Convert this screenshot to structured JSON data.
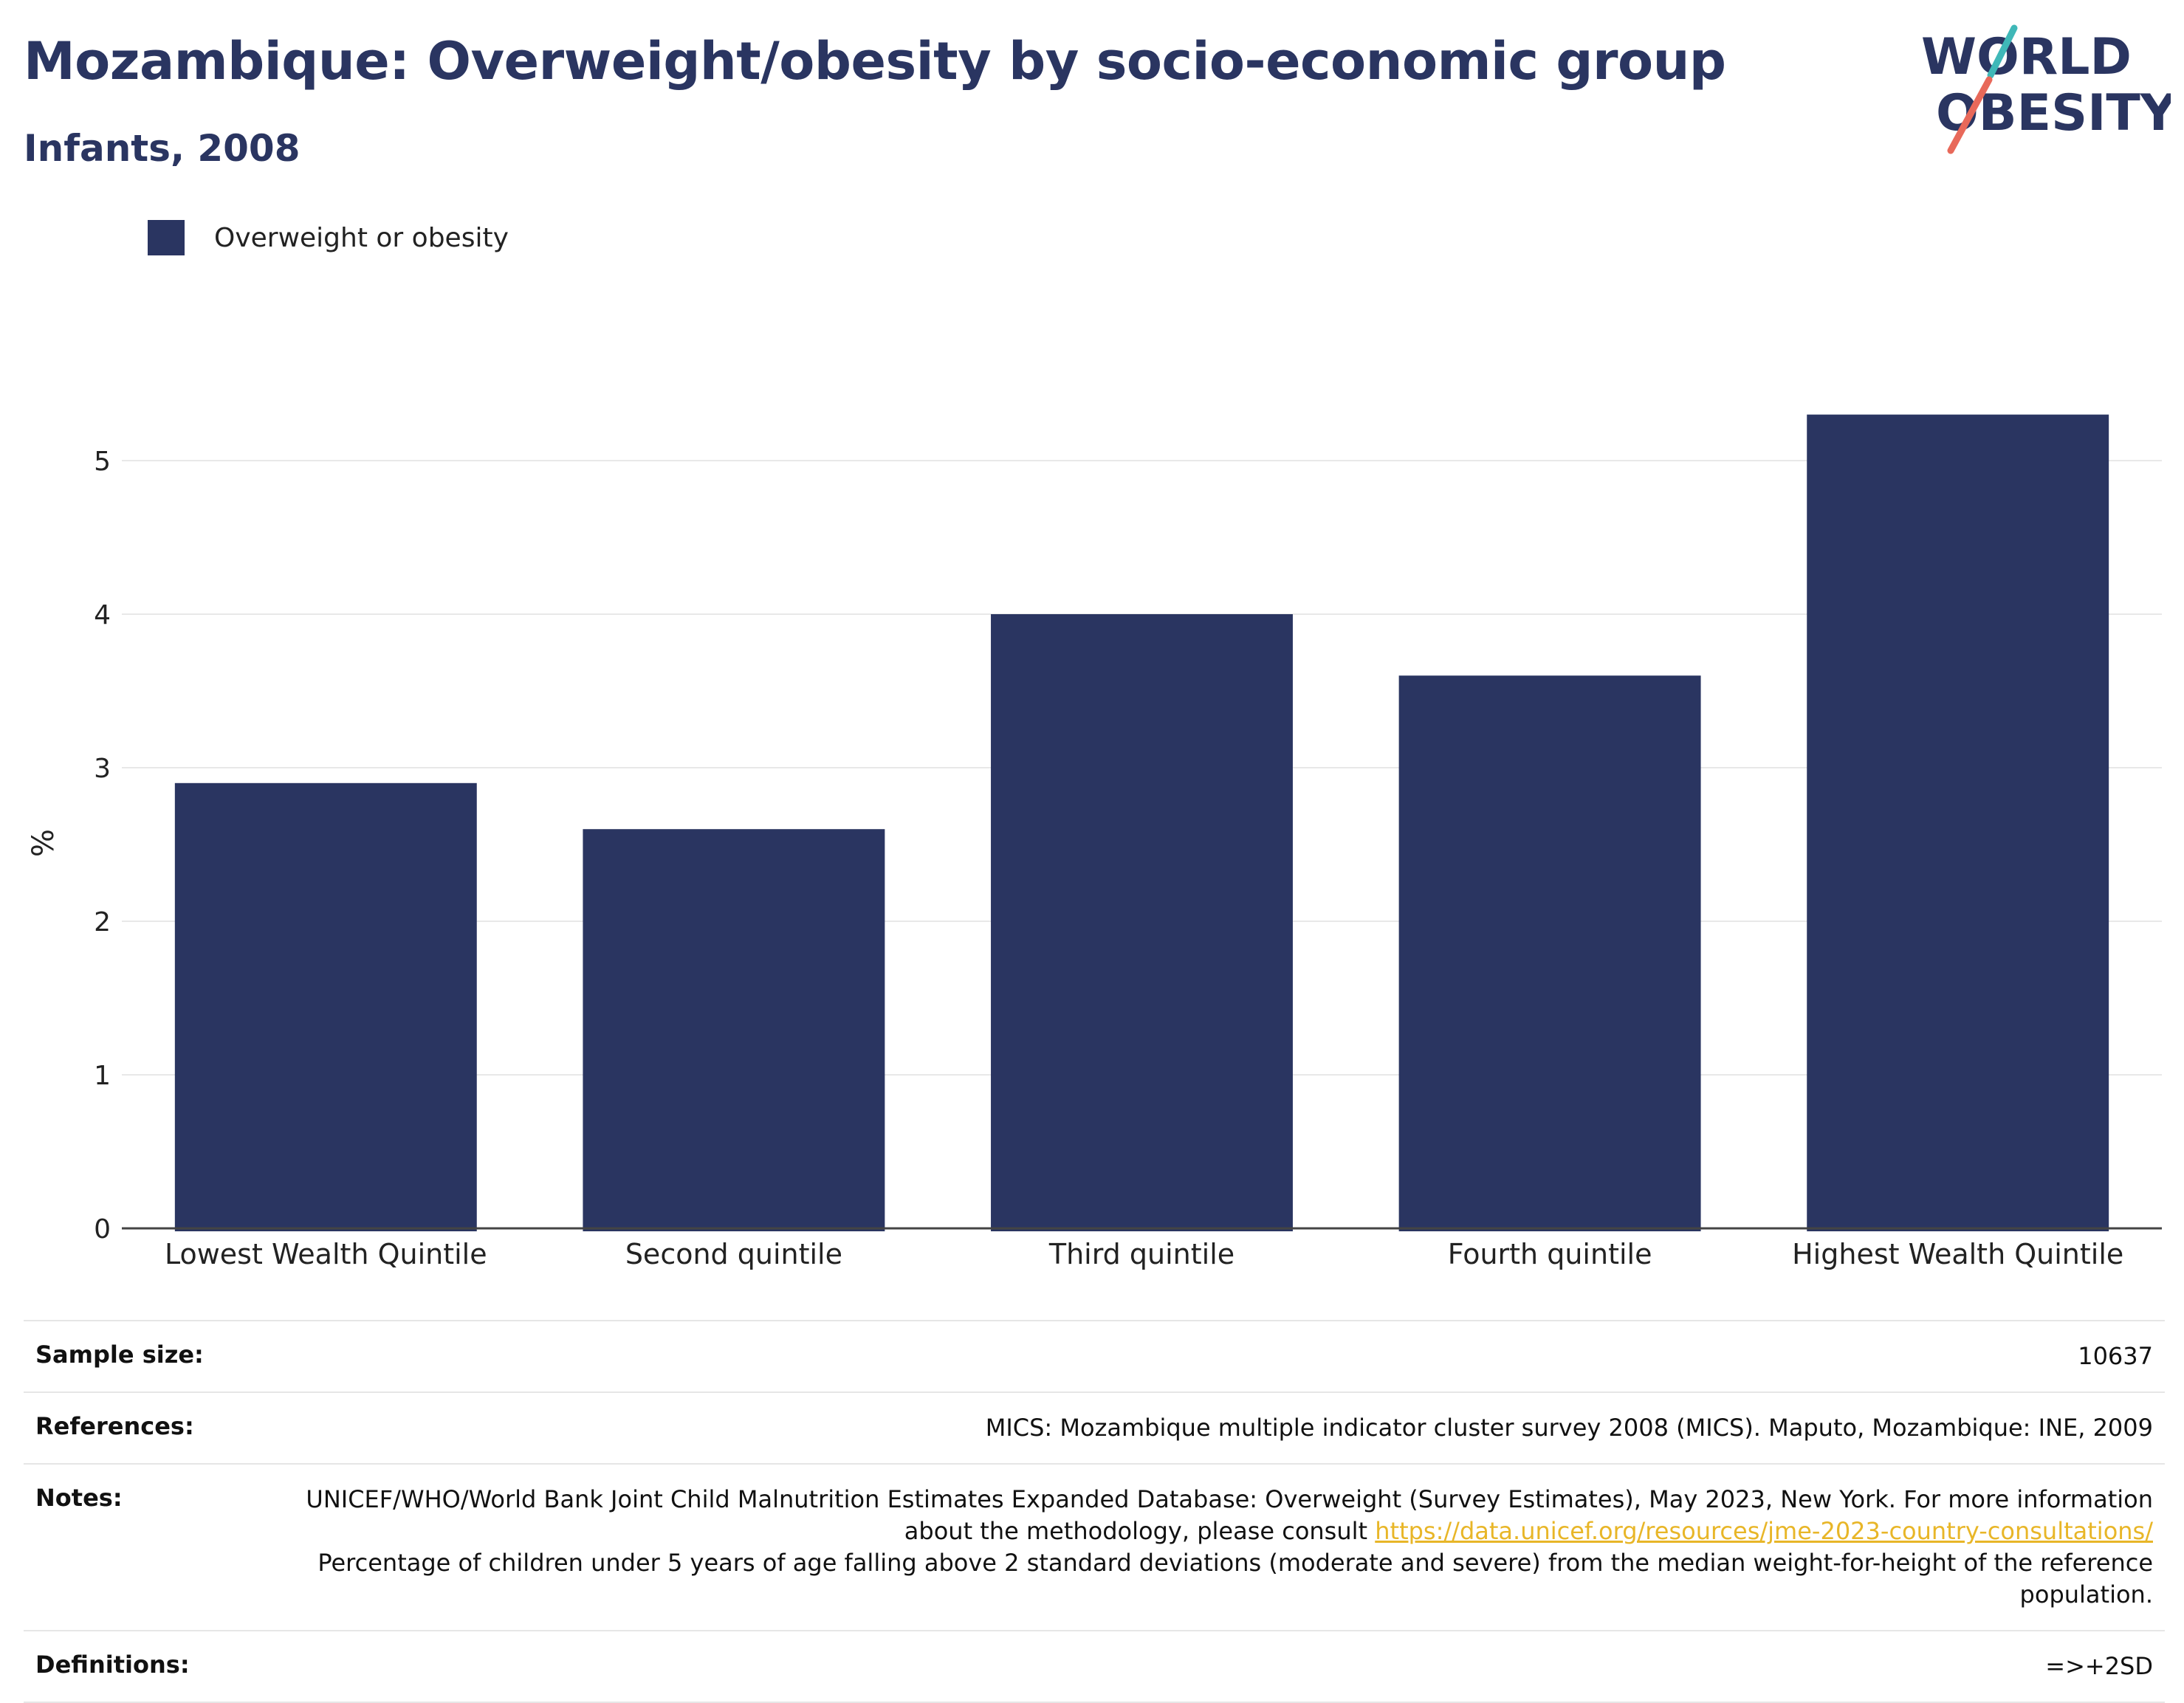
{
  "title": "Mozambique: Overweight/obesity by socio-economic group",
  "subtitle": "Infants, 2008",
  "logo": {
    "line1": "WORLD",
    "line2": "OBESITY"
  },
  "legend": {
    "label": "Overweight or obesity",
    "color": "#2a3561"
  },
  "chart_data": {
    "type": "bar",
    "categories": [
      "Lowest Wealth Quintile",
      "Second quintile",
      "Third quintile",
      "Fourth quintile",
      "Highest Wealth Quintile"
    ],
    "series": [
      {
        "name": "Overweight or obesity",
        "values": [
          2.9,
          2.6,
          4.0,
          3.6,
          5.3
        ],
        "color": "#2a3561"
      }
    ],
    "ylabel": "%",
    "ylim": [
      0,
      5.5
    ],
    "yticks": [
      0,
      1,
      2,
      3,
      4,
      5
    ],
    "grid": true,
    "legend_position": "top-left"
  },
  "meta": {
    "sample_size_label": "Sample size:",
    "sample_size_value": "10637",
    "references_label": "References:",
    "references_value": "MICS: Mozambique multiple indicator cluster survey 2008 (MICS). Maputo, Mozambique: INE, 2009",
    "notes_label": "Notes:",
    "notes_text1": "UNICEF/WHO/World Bank Joint Child Malnutrition Estimates Expanded Database: Overweight (Survey Estimates), May 2023, New York. For more information about the methodology, please consult",
    "notes_link": "https://data.unicef.org/resources/jme-2023-country-consultations/",
    "notes_text2": "Percentage of children under 5 years of age falling above 2 standard deviations (moderate and severe) from the median weight-for-height of the reference population.",
    "definitions_label": "Definitions:",
    "definitions_value": "=>+2SD"
  }
}
